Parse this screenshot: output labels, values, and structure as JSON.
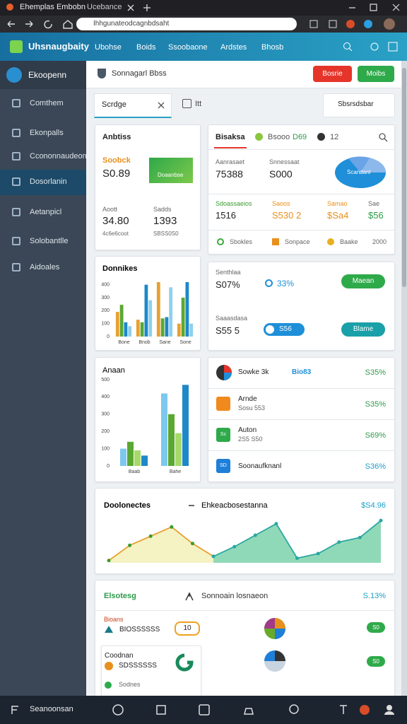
{
  "browser": {
    "tabs": [
      "Ehemplas Embobn",
      "Ucebance"
    ],
    "url": "Ihhgunateodcagnbdsaht"
  },
  "app": {
    "logo": "Uhsnaugbaity",
    "nav": [
      "Ubohse",
      "Boids",
      "Ssoobaone",
      "Ardstes",
      "Bhosb"
    ]
  },
  "sidebar": {
    "user": "Ekoopenn",
    "items": [
      "Comthem",
      "Ekonpalls",
      "Ccononnaudeon",
      "Dosorlanin",
      "Aetanpicl",
      "Solobantlle",
      "Aidoales"
    ]
  },
  "toolbar": {
    "title": "Sonnagarl Bbss",
    "buttons": [
      "Bosrie",
      "Moibs"
    ],
    "tab": "Scrdge",
    "icon_label": "Itt",
    "dropdown": "Sbsrsdsbar"
  },
  "summary": {
    "title": "Anbtiss",
    "label": "Soobck",
    "value": "S0.89",
    "banner": "Doaanbse",
    "stats": [
      {
        "label": "Aoott",
        "value": "34.80"
      },
      {
        "label": "Sadds",
        "value": "1393"
      }
    ],
    "notes": [
      "4c6e6coot",
      "SBSS0S0"
    ]
  },
  "overview": {
    "tabs": [
      "Bisaksa",
      "Bsooo",
      "D69",
      "12"
    ],
    "metrics": [
      {
        "label": "Aanrasaet",
        "value": "75388"
      },
      {
        "label": "Snnessaat",
        "value": "S000"
      }
    ],
    "pie_label": "Scandanl",
    "row": [
      {
        "label": "Sdoassaeios",
        "value": "1516"
      },
      {
        "label": "Saoos",
        "value": "S530 2"
      },
      {
        "label": "Samao",
        "value": "$Sa4"
      },
      {
        "label": "Sae",
        "value": "$56"
      }
    ],
    "legend": [
      "Sbokles",
      "Sonpace",
      "Baake"
    ],
    "legend_value": "2000"
  },
  "controls": {
    "rows": [
      {
        "label": "Senthlaa",
        "value": "S07%",
        "tag": "33%",
        "button": "Maean"
      },
      {
        "label": "Saaasdasa",
        "value": "S55 5",
        "tag": "S56",
        "button": "Blame"
      }
    ]
  },
  "list": {
    "rows": [
      {
        "title": "Sowke 3k",
        "tag": "Bio83",
        "pct": "S35%"
      },
      {
        "title": "Arnde",
        "sub": "Sosu 553",
        "pct": "S35%"
      },
      {
        "icon": "Sc",
        "title": "Auton",
        "sub": "2S5 S50",
        "pct": "S69%"
      },
      {
        "icon": "SD",
        "title": "Soonaufknanl",
        "pct": "S36%"
      }
    ]
  },
  "table": {
    "title": "Elsotesg",
    "search": "Sonnoain losnaeon",
    "pct": "S.13%",
    "rows": [
      {
        "title": "Bioans",
        "sub": "BIOSSSSSS",
        "badge": "10",
        "pill": "S0"
      },
      {
        "title": "Coodnan",
        "sub": "SDSSSSSS",
        "detail": "Sodnes",
        "pill": "S0"
      }
    ]
  },
  "taskbar": {
    "label": "Seanoonsan"
  },
  "chart_data": [
    {
      "type": "bar",
      "title": "Donnikes",
      "categories": [
        "Bone",
        "Bnob",
        "Sane",
        "Sone"
      ],
      "series": [
        {
          "color": "#e8a030",
          "values": [
            190,
            130,
            420,
            100
          ]
        },
        {
          "color": "#5aa832",
          "values": [
            245,
            110,
            140,
            300
          ]
        },
        {
          "color": "#1e88c8",
          "values": [
            110,
            400,
            150,
            420
          ]
        },
        {
          "color": "#8fd0ee",
          "values": [
            80,
            280,
            380,
            100
          ]
        }
      ],
      "ylim": [
        0,
        420
      ],
      "yticks": [
        0,
        100,
        200,
        300,
        400
      ],
      "grid": false
    },
    {
      "type": "bar",
      "title": "Anaan",
      "categories": [
        "Baab",
        "Bahe"
      ],
      "series": [
        {
          "color": "#7cc8ee",
          "values": [
            100,
            420
          ]
        },
        {
          "color": "#5aa832",
          "values": [
            140,
            300
          ]
        },
        {
          "color": "#a6d96a",
          "values": [
            90,
            190
          ]
        },
        {
          "color": "#1e88c8",
          "values": [
            60,
            470
          ]
        }
      ],
      "ylim": [
        0,
        500
      ],
      "yticks": [
        0,
        100,
        200,
        300,
        400,
        500
      ],
      "grid": false
    },
    {
      "type": "line",
      "title": "Doolonectes",
      "subtitle": "Ehkeacbosestanna",
      "annotation": "$S4.96",
      "series": [
        {
          "color": "#e8a030",
          "fill": "#f3efb4",
          "values": [
            5,
            38,
            58,
            78,
            42,
            14,
            null,
            null,
            null,
            null,
            null,
            null,
            null,
            null
          ]
        },
        {
          "color": "#2aa8a0",
          "fill": "#74cfa6",
          "values": [
            null,
            null,
            null,
            null,
            null,
            14,
            35,
            60,
            85,
            10,
            20,
            45,
            55,
            92
          ]
        }
      ],
      "ylim": [
        0,
        100
      ]
    }
  ]
}
